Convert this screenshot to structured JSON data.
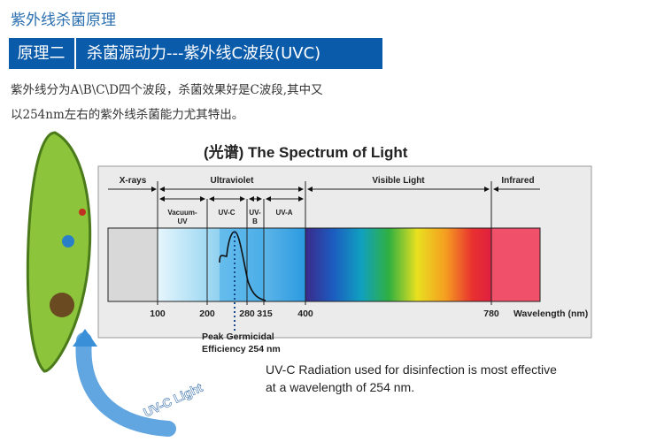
{
  "title": "紫外线杀菌原理",
  "banner": {
    "label": "原理二",
    "heading": "杀菌源动力---紫外线C波段(UVC)"
  },
  "description": [
    "紫外线分为A\\B\\C\\D四个波段，杀菌效果好是C波段,其中又",
    "以254nm左右的紫外线杀菌能力尤其特出。"
  ],
  "diagram": {
    "heading": "(光谱) The Spectrum of Light",
    "regions": {
      "xrays": "X-rays",
      "ultraviolet": "Ultraviolet",
      "visible": "Visible Light",
      "infrared": "Infrared"
    },
    "sub_regions": {
      "vacuum_uv": [
        "Vacuum-",
        "UV"
      ],
      "uvc": "UV-C",
      "uvb": [
        "UV-",
        "B"
      ],
      "uva": "UV-A"
    },
    "ticks": [
      "100",
      "200",
      "280",
      "315",
      "400",
      "780"
    ],
    "axis_label": "Wavelength (nm)",
    "peak_label": [
      "Peak Germicidal",
      "Efficiency 254 nm"
    ],
    "caption": [
      "UV-C Radiation used for disinfection is most effective",
      "at a wavelength of 254 nm."
    ],
    "arrow_label": "UV-C Light"
  },
  "colors": {
    "banner": "#0b5bab",
    "title": "#2a6fb0"
  }
}
